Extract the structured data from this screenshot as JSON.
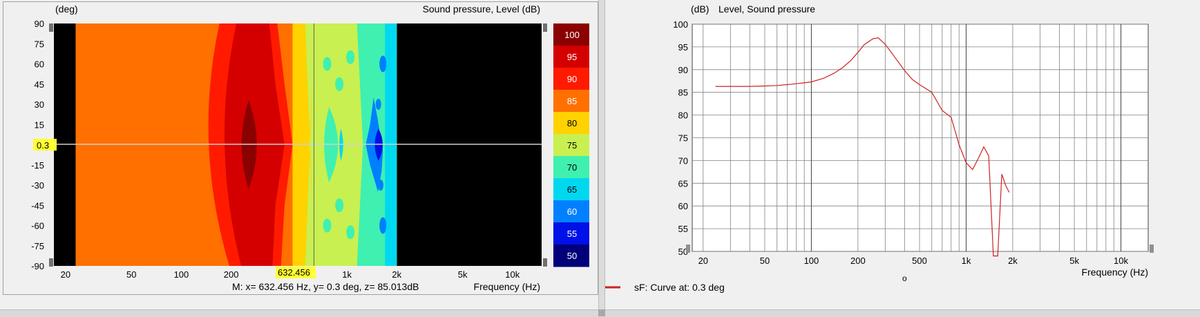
{
  "left_panel": {
    "y_unit": "(deg)",
    "title": "Sound pressure, Level  (dB)",
    "cursor_y_badge": "0.3",
    "cursor_x_badge": "632.456",
    "status_line": "M:  x= 632.456 Hz,  y= 0.3 deg, z= 85.013dB",
    "x_axis_label": "Frequency  (Hz)",
    "colorbar_levels": [
      "100",
      "95",
      "90",
      "85",
      "80",
      "75",
      "70",
      "65",
      "60",
      "55",
      "50"
    ],
    "colorbar_colors": [
      "#8b0000",
      "#d40000",
      "#ff1a00",
      "#ff7000",
      "#ffd200",
      "#c8f050",
      "#40f0b0",
      "#00d8f0",
      "#0080ff",
      "#0010e8",
      "#00007a"
    ],
    "x_ticks": [
      "20",
      "50",
      "100",
      "200",
      "500",
      "1k",
      "2k",
      "5k",
      "10k"
    ],
    "y_ticks": [
      "90",
      "75",
      "60",
      "45",
      "30",
      "15",
      "0",
      "-15",
      "-30",
      "-45",
      "-60",
      "-75",
      "-90"
    ]
  },
  "right_panel": {
    "y_unit": "(dB)",
    "title": "Level, Sound pressure",
    "x_axis_label": "Frequency  (Hz)",
    "legend_label": "sF: Curve at: 0.3 deg",
    "legend_color": "#cc2222",
    "marker_glyph": "o"
  },
  "chart_data": [
    {
      "type": "heatmap",
      "title": "Sound pressure, Level  (dB)",
      "xlabel": "Frequency  (Hz)",
      "ylabel": "(deg)",
      "x_scale": "log",
      "xlim": [
        17,
        15000
      ],
      "ylim": [
        -90,
        90
      ],
      "x_ticks": [
        20,
        50,
        100,
        200,
        500,
        1000,
        2000,
        5000,
        10000
      ],
      "y_ticks": [
        90,
        75,
        60,
        45,
        30,
        15,
        0,
        -15,
        -30,
        -45,
        -60,
        -75,
        -90
      ],
      "colorbar_ticks": [
        100,
        95,
        90,
        85,
        80,
        75,
        70,
        65,
        60,
        55,
        50
      ],
      "freq_bands_hz": [
        [
          17,
          23,
          "no data"
        ],
        [
          23,
          155,
          "85-90"
        ],
        [
          230,
          330,
          "90-95"
        ],
        [
          400,
          520,
          "80-85"
        ],
        [
          700,
          1200,
          "70-80"
        ],
        [
          1400,
          1900,
          "55-75"
        ],
        [
          2000,
          15000,
          "no data"
        ]
      ],
      "hot_spot": {
        "freq_hz": 250,
        "angle_deg": [
          -35,
          35
        ],
        "level": "95-100"
      },
      "cursor": {
        "x_hz": 632.456,
        "y_deg": 0.3,
        "z_db": 85.013
      }
    },
    {
      "type": "line",
      "title": "Level, Sound pressure",
      "xlabel": "Frequency  (Hz)",
      "ylabel": "(dB)",
      "x_scale": "log",
      "xlim": [
        17,
        15000
      ],
      "ylim": [
        50,
        100
      ],
      "x_ticks": [
        20,
        50,
        100,
        200,
        500,
        1000,
        2000,
        5000,
        10000
      ],
      "y_ticks": [
        100,
        95,
        90,
        85,
        80,
        75,
        70,
        65,
        60,
        55,
        50
      ],
      "grid": true,
      "series": [
        {
          "name": "sF: Curve at: 0.3 deg",
          "x": [
            24,
            30,
            40,
            50,
            60,
            70,
            80,
            90,
            100,
            120,
            140,
            160,
            180,
            200,
            220,
            250,
            270,
            300,
            350,
            400,
            450,
            500,
            600,
            700,
            800,
            900,
            1000,
            1100,
            1200,
            1300,
            1400,
            1500,
            1600,
            1700,
            1800,
            1900
          ],
          "y": [
            86.3,
            86.3,
            86.3,
            86.4,
            86.5,
            86.7,
            86.9,
            87.1,
            87.3,
            88.1,
            89.2,
            90.5,
            92.0,
            93.8,
            95.5,
            96.8,
            97.0,
            95.6,
            92.5,
            89.8,
            87.8,
            86.7,
            85.0,
            81.0,
            79.5,
            73.5,
            69.5,
            68.0,
            70.5,
            73.0,
            71.0,
            49.0,
            49.0,
            67.0,
            64.5,
            63.0
          ]
        }
      ]
    }
  ]
}
